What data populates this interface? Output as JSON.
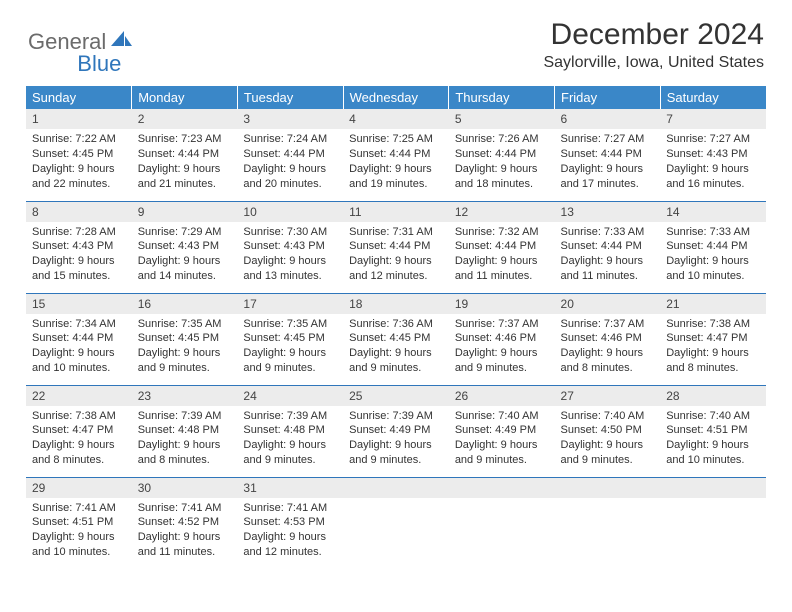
{
  "logo": {
    "part1": "General",
    "part2": "Blue"
  },
  "title": "December 2024",
  "location": "Saylorville, Iowa, United States",
  "colors": {
    "header_bg": "#3a87c8",
    "accent": "#2f76bb",
    "daynum_bg": "#ececec",
    "text": "#333333",
    "logo_gray": "#6b6b6b"
  },
  "weekdays": [
    "Sunday",
    "Monday",
    "Tuesday",
    "Wednesday",
    "Thursday",
    "Friday",
    "Saturday"
  ],
  "weeks": [
    [
      {
        "n": "1",
        "sunrise": "Sunrise: 7:22 AM",
        "sunset": "Sunset: 4:45 PM",
        "day1": "Daylight: 9 hours",
        "day2": "and 22 minutes."
      },
      {
        "n": "2",
        "sunrise": "Sunrise: 7:23 AM",
        "sunset": "Sunset: 4:44 PM",
        "day1": "Daylight: 9 hours",
        "day2": "and 21 minutes."
      },
      {
        "n": "3",
        "sunrise": "Sunrise: 7:24 AM",
        "sunset": "Sunset: 4:44 PM",
        "day1": "Daylight: 9 hours",
        "day2": "and 20 minutes."
      },
      {
        "n": "4",
        "sunrise": "Sunrise: 7:25 AM",
        "sunset": "Sunset: 4:44 PM",
        "day1": "Daylight: 9 hours",
        "day2": "and 19 minutes."
      },
      {
        "n": "5",
        "sunrise": "Sunrise: 7:26 AM",
        "sunset": "Sunset: 4:44 PM",
        "day1": "Daylight: 9 hours",
        "day2": "and 18 minutes."
      },
      {
        "n": "6",
        "sunrise": "Sunrise: 7:27 AM",
        "sunset": "Sunset: 4:44 PM",
        "day1": "Daylight: 9 hours",
        "day2": "and 17 minutes."
      },
      {
        "n": "7",
        "sunrise": "Sunrise: 7:27 AM",
        "sunset": "Sunset: 4:43 PM",
        "day1": "Daylight: 9 hours",
        "day2": "and 16 minutes."
      }
    ],
    [
      {
        "n": "8",
        "sunrise": "Sunrise: 7:28 AM",
        "sunset": "Sunset: 4:43 PM",
        "day1": "Daylight: 9 hours",
        "day2": "and 15 minutes."
      },
      {
        "n": "9",
        "sunrise": "Sunrise: 7:29 AM",
        "sunset": "Sunset: 4:43 PM",
        "day1": "Daylight: 9 hours",
        "day2": "and 14 minutes."
      },
      {
        "n": "10",
        "sunrise": "Sunrise: 7:30 AM",
        "sunset": "Sunset: 4:43 PM",
        "day1": "Daylight: 9 hours",
        "day2": "and 13 minutes."
      },
      {
        "n": "11",
        "sunrise": "Sunrise: 7:31 AM",
        "sunset": "Sunset: 4:44 PM",
        "day1": "Daylight: 9 hours",
        "day2": "and 12 minutes."
      },
      {
        "n": "12",
        "sunrise": "Sunrise: 7:32 AM",
        "sunset": "Sunset: 4:44 PM",
        "day1": "Daylight: 9 hours",
        "day2": "and 11 minutes."
      },
      {
        "n": "13",
        "sunrise": "Sunrise: 7:33 AM",
        "sunset": "Sunset: 4:44 PM",
        "day1": "Daylight: 9 hours",
        "day2": "and 11 minutes."
      },
      {
        "n": "14",
        "sunrise": "Sunrise: 7:33 AM",
        "sunset": "Sunset: 4:44 PM",
        "day1": "Daylight: 9 hours",
        "day2": "and 10 minutes."
      }
    ],
    [
      {
        "n": "15",
        "sunrise": "Sunrise: 7:34 AM",
        "sunset": "Sunset: 4:44 PM",
        "day1": "Daylight: 9 hours",
        "day2": "and 10 minutes."
      },
      {
        "n": "16",
        "sunrise": "Sunrise: 7:35 AM",
        "sunset": "Sunset: 4:45 PM",
        "day1": "Daylight: 9 hours",
        "day2": "and 9 minutes."
      },
      {
        "n": "17",
        "sunrise": "Sunrise: 7:35 AM",
        "sunset": "Sunset: 4:45 PM",
        "day1": "Daylight: 9 hours",
        "day2": "and 9 minutes."
      },
      {
        "n": "18",
        "sunrise": "Sunrise: 7:36 AM",
        "sunset": "Sunset: 4:45 PM",
        "day1": "Daylight: 9 hours",
        "day2": "and 9 minutes."
      },
      {
        "n": "19",
        "sunrise": "Sunrise: 7:37 AM",
        "sunset": "Sunset: 4:46 PM",
        "day1": "Daylight: 9 hours",
        "day2": "and 9 minutes."
      },
      {
        "n": "20",
        "sunrise": "Sunrise: 7:37 AM",
        "sunset": "Sunset: 4:46 PM",
        "day1": "Daylight: 9 hours",
        "day2": "and 8 minutes."
      },
      {
        "n": "21",
        "sunrise": "Sunrise: 7:38 AM",
        "sunset": "Sunset: 4:47 PM",
        "day1": "Daylight: 9 hours",
        "day2": "and 8 minutes."
      }
    ],
    [
      {
        "n": "22",
        "sunrise": "Sunrise: 7:38 AM",
        "sunset": "Sunset: 4:47 PM",
        "day1": "Daylight: 9 hours",
        "day2": "and 8 minutes."
      },
      {
        "n": "23",
        "sunrise": "Sunrise: 7:39 AM",
        "sunset": "Sunset: 4:48 PM",
        "day1": "Daylight: 9 hours",
        "day2": "and 8 minutes."
      },
      {
        "n": "24",
        "sunrise": "Sunrise: 7:39 AM",
        "sunset": "Sunset: 4:48 PM",
        "day1": "Daylight: 9 hours",
        "day2": "and 9 minutes."
      },
      {
        "n": "25",
        "sunrise": "Sunrise: 7:39 AM",
        "sunset": "Sunset: 4:49 PM",
        "day1": "Daylight: 9 hours",
        "day2": "and 9 minutes."
      },
      {
        "n": "26",
        "sunrise": "Sunrise: 7:40 AM",
        "sunset": "Sunset: 4:49 PM",
        "day1": "Daylight: 9 hours",
        "day2": "and 9 minutes."
      },
      {
        "n": "27",
        "sunrise": "Sunrise: 7:40 AM",
        "sunset": "Sunset: 4:50 PM",
        "day1": "Daylight: 9 hours",
        "day2": "and 9 minutes."
      },
      {
        "n": "28",
        "sunrise": "Sunrise: 7:40 AM",
        "sunset": "Sunset: 4:51 PM",
        "day1": "Daylight: 9 hours",
        "day2": "and 10 minutes."
      }
    ],
    [
      {
        "n": "29",
        "sunrise": "Sunrise: 7:41 AM",
        "sunset": "Sunset: 4:51 PM",
        "day1": "Daylight: 9 hours",
        "day2": "and 10 minutes."
      },
      {
        "n": "30",
        "sunrise": "Sunrise: 7:41 AM",
        "sunset": "Sunset: 4:52 PM",
        "day1": "Daylight: 9 hours",
        "day2": "and 11 minutes."
      },
      {
        "n": "31",
        "sunrise": "Sunrise: 7:41 AM",
        "sunset": "Sunset: 4:53 PM",
        "day1": "Daylight: 9 hours",
        "day2": "and 12 minutes."
      },
      {
        "empty": true
      },
      {
        "empty": true
      },
      {
        "empty": true
      },
      {
        "empty": true
      }
    ]
  ]
}
